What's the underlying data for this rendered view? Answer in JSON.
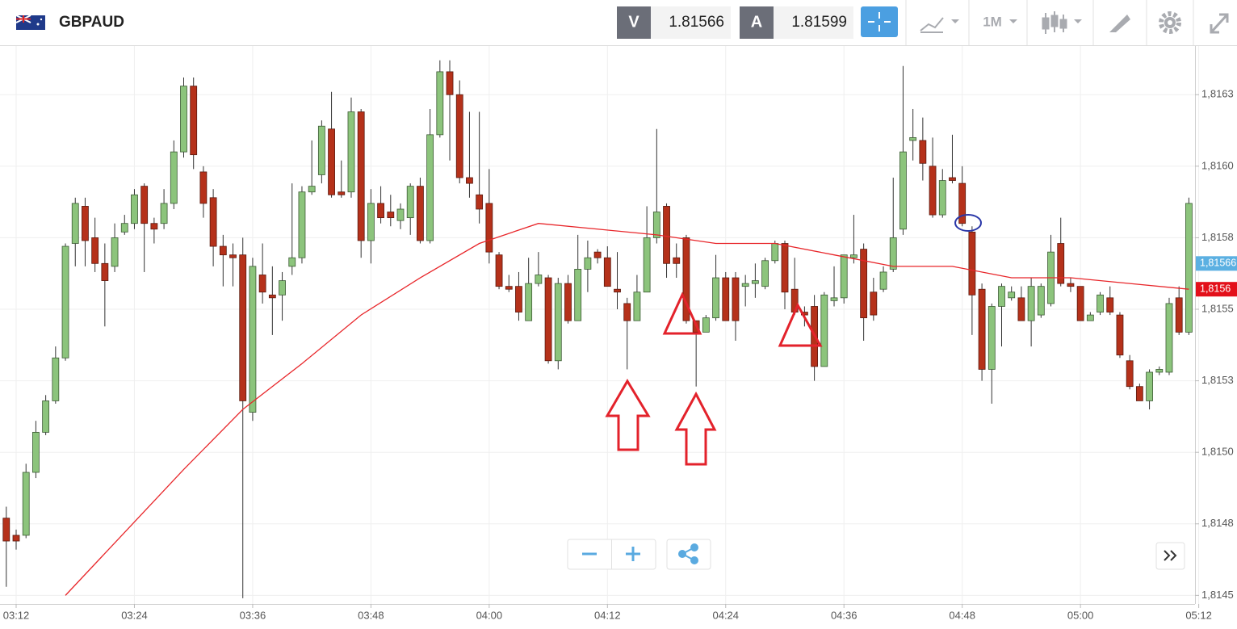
{
  "header": {
    "symbol": "GBPAUD",
    "bid_label": "V",
    "bid": 1.81566,
    "ask_label": "A",
    "ask": 1.81599,
    "timeframe": "1M"
  },
  "chart_data": {
    "type": "candlestick",
    "x": [
      "03:11",
      "03:12",
      "03:13",
      "03:14",
      "03:15",
      "03:16",
      "03:17",
      "03:18",
      "03:19",
      "03:20",
      "03:21",
      "03:22",
      "03:23",
      "03:24",
      "03:25",
      "03:26",
      "03:27",
      "03:28",
      "03:29",
      "03:30",
      "03:31",
      "03:32",
      "03:33",
      "03:34",
      "03:35",
      "03:36",
      "03:37",
      "03:38",
      "03:39",
      "03:40",
      "03:41",
      "03:42",
      "03:43",
      "03:44",
      "03:45",
      "03:46",
      "03:47",
      "03:48",
      "03:49",
      "03:50",
      "03:51",
      "03:52",
      "03:53",
      "03:54",
      "03:55",
      "03:56",
      "03:57",
      "03:58",
      "03:59",
      "04:00",
      "04:01",
      "04:02",
      "04:03",
      "04:04",
      "04:05",
      "04:06",
      "04:07",
      "04:08",
      "04:09",
      "04:10",
      "04:11",
      "04:12",
      "04:13",
      "04:14",
      "04:15",
      "04:16",
      "04:17",
      "04:18",
      "04:19",
      "04:20",
      "04:21",
      "04:22",
      "04:23",
      "04:24",
      "04:25",
      "04:26",
      "04:27",
      "04:28",
      "04:29",
      "04:30",
      "04:31",
      "04:32",
      "04:33",
      "04:34",
      "04:35",
      "04:36",
      "04:37",
      "04:38",
      "04:39",
      "04:40",
      "04:41",
      "04:42",
      "04:43",
      "04:44",
      "04:45",
      "04:46",
      "04:47",
      "04:48",
      "04:49",
      "04:50",
      "04:51",
      "04:52",
      "04:53",
      "04:54",
      "04:55",
      "04:56",
      "04:57",
      "04:58",
      "04:59",
      "05:00",
      "05:01",
      "05:02",
      "05:03",
      "05:04",
      "05:05",
      "05:06",
      "05:07",
      "05:08",
      "05:09",
      "05:10",
      "05:11"
    ],
    "open": [
      1.81477,
      1.81471,
      1.81471,
      1.81493,
      1.81507,
      1.81518,
      1.81533,
      1.81573,
      1.81586,
      1.81575,
      1.81566,
      1.81565,
      1.81577,
      1.8158,
      1.81593,
      1.8158,
      1.8158,
      1.81587,
      1.81605,
      1.81628,
      1.81598,
      1.81589,
      1.81572,
      1.81569,
      1.81569,
      1.81514,
      1.81562,
      1.81555,
      1.81555,
      1.81565,
      1.81568,
      1.81591,
      1.81597,
      1.81613,
      1.81591,
      1.81591,
      1.81619,
      1.81574,
      1.81587,
      1.81584,
      1.81581,
      1.81582,
      1.81593,
      1.81574,
      1.81611,
      1.81633,
      1.81625,
      1.81596,
      1.8159,
      1.81587,
      1.81569,
      1.81558,
      1.81558,
      1.81546,
      1.81559,
      1.81561,
      1.81532,
      1.81559,
      1.81546,
      1.81564,
      1.8157,
      1.81568,
      1.81557,
      1.81552,
      1.81546,
      1.81556,
      1.81575,
      1.81586,
      1.81568,
      1.81575,
      1.81546,
      1.81542,
      1.81547,
      1.81561,
      1.81561,
      1.81558,
      1.81559,
      1.81558,
      1.81567,
      1.81573,
      1.81557,
      1.81549,
      1.81551,
      1.8153,
      1.81553,
      1.81554,
      1.81568,
      1.81571,
      1.81556,
      1.81557,
      1.81564,
      1.81578,
      1.81609,
      1.81609,
      1.816,
      1.81583,
      1.81596,
      1.81594,
      1.81577,
      1.81557,
      1.81529,
      1.81551,
      1.81554,
      1.81554,
      1.81546,
      1.81548,
      1.81552,
      1.81573,
      1.81559,
      1.81558,
      1.81546,
      1.81549,
      1.81554,
      1.81548,
      1.81532,
      1.81523,
      1.81518,
      1.81528,
      1.81528,
      1.81554,
      1.81542
    ],
    "high": [
      1.81481,
      1.81473,
      1.81496,
      1.81511,
      1.8152,
      1.81537,
      1.81573,
      1.81589,
      1.81589,
      1.81582,
      1.81573,
      1.8158,
      1.81583,
      1.81592,
      1.81594,
      1.81582,
      1.81592,
      1.81609,
      1.81631,
      1.81631,
      1.816,
      1.81592,
      1.81576,
      1.81573,
      1.81575,
      1.81568,
      1.81573,
      1.81565,
      1.81563,
      1.81594,
      1.81593,
      1.81609,
      1.81616,
      1.81626,
      1.81602,
      1.81624,
      1.8162,
      1.81592,
      1.81593,
      1.8159,
      1.81587,
      1.81594,
      1.81596,
      1.8162,
      1.81637,
      1.81637,
      1.8163,
      1.81619,
      1.81619,
      1.81599,
      1.8157,
      1.81562,
      1.81563,
      1.81568,
      1.8157,
      1.81562,
      1.81561,
      1.81562,
      1.81576,
      1.81574,
      1.81571,
      1.81572,
      1.8157,
      1.81554,
      1.81562,
      1.81586,
      1.81613,
      1.81587,
      1.81573,
      1.81576,
      1.81546,
      1.81548,
      1.81569,
      1.81563,
      1.81563,
      1.81562,
      1.81566,
      1.81568,
      1.81574,
      1.81574,
      1.81568,
      1.81551,
      1.81555,
      1.81556,
      1.81565,
      1.81569,
      1.81583,
      1.81573,
      1.81561,
      1.81565,
      1.81596,
      1.81635,
      1.8162,
      1.81617,
      1.8161,
      1.81599,
      1.81611,
      1.816,
      1.81579,
      1.81559,
      1.81552,
      1.81559,
      1.81558,
      1.81558,
      1.81561,
      1.81559,
      1.81576,
      1.81582,
      1.81561,
      1.81558,
      1.81549,
      1.81556,
      1.81558,
      1.81549,
      1.81534,
      1.81524,
      1.81529,
      1.8153,
      1.81554,
      1.81558,
      1.81589
    ],
    "low": [
      1.81453,
      1.81466,
      1.8147,
      1.81491,
      1.81506,
      1.81517,
      1.81532,
      1.81565,
      1.81565,
      1.81563,
      1.81544,
      1.81563,
      1.81576,
      1.81578,
      1.81563,
      1.81573,
      1.81578,
      1.81585,
      1.81603,
      1.81599,
      1.81582,
      1.81565,
      1.81558,
      1.81558,
      1.81449,
      1.81511,
      1.81552,
      1.81541,
      1.81546,
      1.81562,
      1.81566,
      1.8159,
      1.81594,
      1.81589,
      1.81589,
      1.81589,
      1.81568,
      1.81566,
      1.8158,
      1.81579,
      1.81578,
      1.81576,
      1.81573,
      1.81573,
      1.8161,
      1.81602,
      1.81594,
      1.81589,
      1.8158,
      1.81566,
      1.81557,
      1.81556,
      1.81546,
      1.81546,
      1.81558,
      1.81531,
      1.81529,
      1.81545,
      1.81546,
      1.81556,
      1.81566,
      1.81558,
      1.8155,
      1.81529,
      1.81546,
      1.81556,
      1.81573,
      1.81561,
      1.81561,
      1.81545,
      1.81523,
      1.81542,
      1.81546,
      1.81546,
      1.81539,
      1.81551,
      1.81554,
      1.81557,
      1.81566,
      1.8155,
      1.81548,
      1.81544,
      1.81525,
      1.8153,
      1.81551,
      1.81552,
      1.81566,
      1.81539,
      1.81546,
      1.81556,
      1.81563,
      1.81576,
      1.81602,
      1.81595,
      1.81582,
      1.81582,
      1.81594,
      1.81579,
      1.81541,
      1.81525,
      1.81517,
      1.81537,
      1.81553,
      1.81546,
      1.81537,
      1.81547,
      1.81551,
      1.81558,
      1.81556,
      1.81546,
      1.81546,
      1.81548,
      1.81548,
      1.81533,
      1.81522,
      1.81518,
      1.81515,
      1.81527,
      1.81527,
      1.81541,
      1.81541
    ],
    "close": [
      1.81469,
      1.81469,
      1.81493,
      1.81507,
      1.81518,
      1.81533,
      1.81572,
      1.81587,
      1.81574,
      1.81566,
      1.8156,
      1.81575,
      1.8158,
      1.8159,
      1.8158,
      1.81578,
      1.81587,
      1.81605,
      1.81628,
      1.81604,
      1.81587,
      1.81572,
      1.81569,
      1.81568,
      1.81518,
      1.81565,
      1.81556,
      1.81554,
      1.8156,
      1.81568,
      1.81591,
      1.81593,
      1.81614,
      1.8159,
      1.8159,
      1.81619,
      1.81574,
      1.81587,
      1.81582,
      1.81582,
      1.81585,
      1.81593,
      1.81574,
      1.81611,
      1.81633,
      1.81625,
      1.81596,
      1.81594,
      1.81585,
      1.8157,
      1.81558,
      1.81557,
      1.81549,
      1.81559,
      1.81562,
      1.81532,
      1.81559,
      1.81546,
      1.81564,
      1.81568,
      1.81568,
      1.81558,
      1.81556,
      1.81546,
      1.81556,
      1.81575,
      1.81584,
      1.81566,
      1.81566,
      1.81546,
      1.81542,
      1.81547,
      1.81561,
      1.81546,
      1.81546,
      1.81559,
      1.8156,
      1.81567,
      1.81573,
      1.81556,
      1.81549,
      1.81548,
      1.8153,
      1.81555,
      1.81554,
      1.81569,
      1.81569,
      1.81547,
      1.81548,
      1.81563,
      1.81575,
      1.81605,
      1.8161,
      1.81601,
      1.81583,
      1.81595,
      1.81595,
      1.8158,
      1.81555,
      1.81529,
      1.81551,
      1.81558,
      1.81556,
      1.81546,
      1.81558,
      1.81558,
      1.8157,
      1.81559,
      1.81558,
      1.81546,
      1.81548,
      1.81555,
      1.81549,
      1.81534,
      1.81523,
      1.81518,
      1.81528,
      1.81529,
      1.81552,
      1.81542,
      1.81587
    ],
    "up_color": "#8cc47c",
    "down_color": "#b5311a",
    "xlim": [
      "03:10",
      "05:12"
    ],
    "xticks": [
      "03:12",
      "03:24",
      "03:36",
      "03:48",
      "04:00",
      "04:12",
      "04:24",
      "04:36",
      "04:48",
      "05:00",
      "05:12"
    ],
    "ylim": [
      1.81447,
      1.81642
    ],
    "yticks": [
      {
        "value": 1.81625,
        "label": "1,8163"
      },
      {
        "value": 1.816,
        "label": "1,8160"
      },
      {
        "value": 1.81575,
        "label": "1,8158"
      },
      {
        "value": 1.8155,
        "label": "1,8155"
      },
      {
        "value": 1.81525,
        "label": "1,8153"
      },
      {
        "value": 1.815,
        "label": "1,8150"
      },
      {
        "value": 1.81475,
        "label": "1,8148"
      },
      {
        "value": 1.8145,
        "label": "1,8145"
      }
    ],
    "grid": true,
    "moving_average": {
      "color": "#e8262a",
      "x": [
        "03:17",
        "03:23",
        "03:29",
        "03:35",
        "03:41",
        "03:47",
        "03:53",
        "03:59",
        "04:05",
        "04:11",
        "04:17",
        "04:23",
        "04:29",
        "04:35",
        "04:41",
        "04:47",
        "04:53",
        "04:59",
        "05:05",
        "05:11"
      ],
      "values": [
        1.8145,
        1.81472,
        1.81494,
        1.81515,
        1.81531,
        1.81548,
        1.81561,
        1.81573,
        1.8158,
        1.81578,
        1.81576,
        1.81573,
        1.81573,
        1.81569,
        1.81565,
        1.81565,
        1.81561,
        1.81561,
        1.81559,
        1.81557
      ]
    },
    "price_tags": [
      {
        "value": 1.81566,
        "label": "1,81566",
        "color": "#5bb0e2"
      },
      {
        "value": 1.81557,
        "label": "1,8156",
        "color": "#e3101a"
      }
    ]
  }
}
